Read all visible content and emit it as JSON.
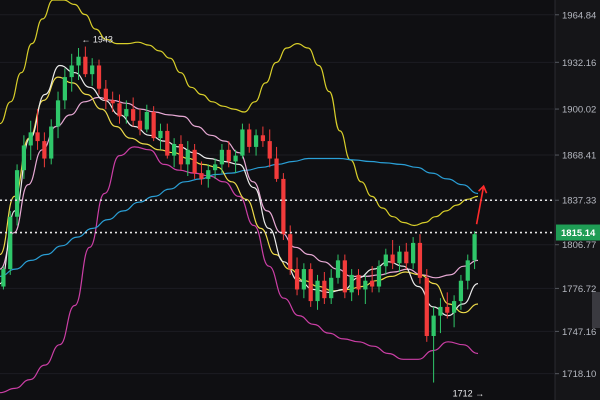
{
  "chart_data": {
    "type": "candlestick",
    "ylim": [
      1700,
      1975
    ],
    "y_ticks": [
      "1964.84",
      "1932.16",
      "1900.02",
      "1868.41",
      "1837.33",
      "1806.77",
      "1776.72",
      "1747.16",
      "1718.10"
    ],
    "y_tick_values": [
      1964.84,
      1932.16,
      1900.02,
      1868.41,
      1837.33,
      1806.77,
      1776.72,
      1747.16,
      1718.1
    ],
    "current_price": {
      "label": "1815.14",
      "value": 1815.14
    },
    "reference_lines": [
      1837.33,
      1815.14
    ],
    "annotations": [
      {
        "text": "← 1943",
        "value": 1943,
        "index": 12
      },
      {
        "text": "1712 →",
        "value": 1712,
        "index": 69
      }
    ],
    "candles": [
      [
        1778,
        1792,
        1776,
        1790
      ],
      [
        1790,
        1830,
        1786,
        1826
      ],
      [
        1826,
        1862,
        1820,
        1858
      ],
      [
        1858,
        1882,
        1852,
        1875
      ],
      [
        1875,
        1892,
        1865,
        1884
      ],
      [
        1884,
        1900,
        1872,
        1878
      ],
      [
        1878,
        1884,
        1860,
        1866
      ],
      [
        1866,
        1893,
        1862,
        1888
      ],
      [
        1888,
        1912,
        1880,
        1906
      ],
      [
        1906,
        1928,
        1900,
        1922
      ],
      [
        1922,
        1938,
        1912,
        1930
      ],
      [
        1930,
        1942,
        1920,
        1936
      ],
      [
        1936,
        1943,
        1922,
        1924
      ],
      [
        1924,
        1935,
        1916,
        1930
      ],
      [
        1930,
        1934,
        1910,
        1914
      ],
      [
        1914,
        1920,
        1900,
        1906
      ],
      [
        1906,
        1912,
        1898,
        1904
      ],
      [
        1904,
        1910,
        1890,
        1895
      ],
      [
        1895,
        1906,
        1890,
        1900
      ],
      [
        1900,
        1908,
        1888,
        1892
      ],
      [
        1892,
        1900,
        1882,
        1886
      ],
      [
        1886,
        1903,
        1884,
        1898
      ],
      [
        1898,
        1902,
        1878,
        1880
      ],
      [
        1880,
        1890,
        1872,
        1885
      ],
      [
        1885,
        1890,
        1866,
        1868
      ],
      [
        1868,
        1880,
        1860,
        1876
      ],
      [
        1876,
        1882,
        1858,
        1862
      ],
      [
        1862,
        1878,
        1854,
        1872
      ],
      [
        1872,
        1876,
        1852,
        1856
      ],
      [
        1856,
        1864,
        1848,
        1852
      ],
      [
        1852,
        1862,
        1846,
        1858
      ],
      [
        1858,
        1866,
        1852,
        1862
      ],
      [
        1862,
        1876,
        1856,
        1872
      ],
      [
        1872,
        1878,
        1860,
        1864
      ],
      [
        1864,
        1872,
        1856,
        1868
      ],
      [
        1868,
        1890,
        1866,
        1886
      ],
      [
        1886,
        1890,
        1870,
        1874
      ],
      [
        1874,
        1886,
        1868,
        1882
      ],
      [
        1882,
        1888,
        1874,
        1878
      ],
      [
        1878,
        1886,
        1860,
        1866
      ],
      [
        1866,
        1874,
        1850,
        1852
      ],
      [
        1852,
        1856,
        1810,
        1814
      ],
      [
        1814,
        1820,
        1786,
        1790
      ],
      [
        1790,
        1798,
        1772,
        1776
      ],
      [
        1776,
        1794,
        1770,
        1790
      ],
      [
        1790,
        1794,
        1764,
        1768
      ],
      [
        1768,
        1786,
        1762,
        1782
      ],
      [
        1782,
        1788,
        1766,
        1770
      ],
      [
        1770,
        1790,
        1766,
        1784
      ],
      [
        1784,
        1800,
        1780,
        1796
      ],
      [
        1796,
        1800,
        1770,
        1774
      ],
      [
        1774,
        1790,
        1768,
        1786
      ],
      [
        1786,
        1790,
        1772,
        1776
      ],
      [
        1776,
        1786,
        1766,
        1782
      ],
      [
        1782,
        1792,
        1774,
        1778
      ],
      [
        1778,
        1796,
        1774,
        1792
      ],
      [
        1792,
        1804,
        1786,
        1800
      ],
      [
        1800,
        1810,
        1790,
        1794
      ],
      [
        1794,
        1806,
        1788,
        1802
      ],
      [
        1802,
        1808,
        1790,
        1794
      ],
      [
        1794,
        1812,
        1790,
        1808
      ],
      [
        1808,
        1814,
        1780,
        1784
      ],
      [
        1784,
        1790,
        1740,
        1744
      ],
      [
        1744,
        1764,
        1712,
        1758
      ],
      [
        1758,
        1770,
        1746,
        1764
      ],
      [
        1764,
        1774,
        1756,
        1760
      ],
      [
        1760,
        1772,
        1750,
        1768
      ],
      [
        1768,
        1786,
        1762,
        1782
      ],
      [
        1782,
        1800,
        1776,
        1796
      ],
      [
        1796,
        1816,
        1790,
        1814
      ]
    ],
    "overlays": [
      {
        "name": "upper-band",
        "color": "#d9cf2a",
        "values": [
          1890,
          1905,
          1925,
          1945,
          1962,
          1975,
          1975,
          1972,
          1965,
          1955,
          1948,
          1945,
          1945,
          1946,
          1944,
          1940,
          1935,
          1925,
          1915,
          1910,
          1905,
          1902,
          1900,
          1898,
          1905,
          1918,
          1932,
          1942,
          1945,
          1942,
          1930,
          1912,
          1885,
          1865,
          1850,
          1840,
          1832,
          1826,
          1822,
          1820,
          1822,
          1826,
          1830,
          1834,
          1838,
          1840
        ]
      },
      {
        "name": "lower-band",
        "color": "#cc3fa6",
        "values": [
          1705,
          1708,
          1714,
          1724,
          1738,
          1765,
          1805,
          1842,
          1868,
          1874,
          1872,
          1862,
          1858,
          1856,
          1854,
          1850,
          1840,
          1820,
          1792,
          1770,
          1758,
          1752,
          1746,
          1742,
          1740,
          1737,
          1732,
          1728,
          1728,
          1734,
          1740,
          1738,
          1732
        ]
      },
      {
        "name": "ma-blue",
        "color": "#2a9fd6",
        "values": [
          1785,
          1790,
          1796,
          1800,
          1806,
          1812,
          1818,
          1824,
          1830,
          1836,
          1840,
          1845,
          1850,
          1852,
          1855,
          1856,
          1858,
          1860,
          1862,
          1864,
          1866,
          1866,
          1866,
          1865,
          1864,
          1863,
          1862,
          1860,
          1856,
          1852,
          1848,
          1842
        ]
      },
      {
        "name": "ma-pink",
        "color": "#e7a9d4",
        "values": [
          1790,
          1815,
          1848,
          1872,
          1888,
          1896,
          1905,
          1908,
          1906,
          1904,
          1900,
          1898,
          1896,
          1895,
          1888,
          1882,
          1878,
          1870,
          1850,
          1830,
          1815,
          1805,
          1800,
          1795,
          1790,
          1785,
          1785,
          1786,
          1788,
          1790,
          1786,
          1784,
          1786,
          1792,
          1796
        ]
      },
      {
        "name": "ma-yellow",
        "color": "#ecd94a",
        "values": [
          1800,
          1840,
          1880,
          1906,
          1922,
          1918,
          1910,
          1900,
          1888,
          1880,
          1876,
          1872,
          1870,
          1866,
          1862,
          1860,
          1850,
          1838,
          1818,
          1800,
          1790,
          1782,
          1778,
          1775,
          1776,
          1778,
          1782,
          1785,
          1788,
          1786,
          1780,
          1766,
          1760,
          1766
        ]
      },
      {
        "name": "ma-white",
        "color": "#ebebeb",
        "values": [
          1780,
          1830,
          1880,
          1910,
          1930,
          1925,
          1915,
          1906,
          1896,
          1888,
          1882,
          1878,
          1874,
          1870,
          1866,
          1864,
          1862,
          1846,
          1818,
          1795,
          1782,
          1776,
          1774,
          1776,
          1784,
          1790,
          1795,
          1792,
          1778,
          1764,
          1758,
          1766,
          1780
        ]
      }
    ],
    "projection_arrow": {
      "color": "#ff2b2b"
    }
  }
}
